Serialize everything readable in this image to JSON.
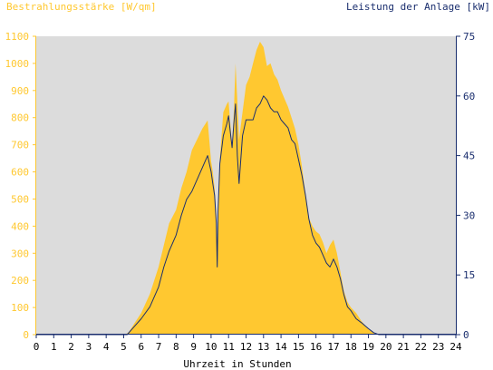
{
  "chart_data": {
    "type": "area",
    "left_axis_label": "Bestrahlungsstärke [W/qm]",
    "right_axis_label": "Leistung der Anlage [kW]",
    "xlabel": "Uhrzeit in Stunden",
    "xlim": [
      0,
      24
    ],
    "ylim_left": [
      0,
      1100
    ],
    "ylim_right": [
      0,
      75
    ],
    "x_ticks": [
      "0",
      "1",
      "2",
      "3",
      "4",
      "5",
      "6",
      "7",
      "8",
      "9",
      "10",
      "11",
      "12",
      "13",
      "14",
      "15",
      "16",
      "17",
      "18",
      "19",
      "20",
      "21",
      "22",
      "23",
      "24"
    ],
    "y_ticks_left": [
      "0",
      "100",
      "200",
      "300",
      "400",
      "500",
      "600",
      "700",
      "800",
      "900",
      "1000",
      "1100"
    ],
    "y_ticks_right": [
      "0",
      "15",
      "30",
      "45",
      "60",
      "75"
    ],
    "grid": false,
    "colors": {
      "plot_background": "#dcdcdc",
      "irradiance_fill": "#ffc830",
      "power_line": "#1a2e6e",
      "axis_left": "#ffc830",
      "axis_right": "#1a2e6e"
    },
    "series": [
      {
        "name": "Bestrahlungsstärke [W/qm]",
        "axis": "left",
        "render": "filled-area",
        "x": [
          0,
          5.1,
          5.3,
          5.6,
          6.0,
          6.5,
          7.0,
          7.3,
          7.6,
          8.0,
          8.3,
          8.6,
          8.9,
          9.2,
          9.5,
          9.8,
          10.0,
          10.1,
          10.2,
          10.3,
          10.35,
          10.4,
          10.5,
          10.7,
          10.9,
          11.0,
          11.1,
          11.2,
          11.3,
          11.4,
          11.5,
          11.6,
          11.8,
          12.0,
          12.2,
          12.4,
          12.6,
          12.8,
          13.0,
          13.2,
          13.4,
          13.6,
          13.8,
          14.0,
          14.2,
          14.4,
          14.6,
          14.8,
          15.0,
          15.2,
          15.4,
          15.6,
          15.8,
          16.0,
          16.2,
          16.4,
          16.6,
          16.8,
          17.0,
          17.2,
          17.4,
          17.6,
          17.8,
          18.0,
          18.3,
          18.6,
          19.0,
          19.2,
          19.4,
          19.6,
          24
        ],
        "values": [
          0,
          0,
          10,
          40,
          80,
          150,
          250,
          330,
          410,
          460,
          540,
          600,
          680,
          720,
          760,
          790,
          640,
          600,
          540,
          440,
          320,
          470,
          650,
          820,
          850,
          860,
          780,
          700,
          820,
          1000,
          860,
          720,
          820,
          920,
          950,
          1000,
          1050,
          1080,
          1060,
          990,
          1000,
          960,
          940,
          900,
          870,
          840,
          800,
          760,
          700,
          620,
          520,
          430,
          400,
          380,
          370,
          340,
          300,
          330,
          350,
          300,
          230,
          160,
          120,
          100,
          80,
          50,
          20,
          10,
          2,
          0,
          0
        ]
      },
      {
        "name": "Leistung der Anlage [kW]",
        "axis": "right",
        "render": "line",
        "x": [
          0,
          5.2,
          5.5,
          6.0,
          6.5,
          7.0,
          7.3,
          7.6,
          8.0,
          8.3,
          8.6,
          8.9,
          9.2,
          9.5,
          9.8,
          10.0,
          10.1,
          10.2,
          10.3,
          10.35,
          10.4,
          10.5,
          10.7,
          10.9,
          11.0,
          11.1,
          11.2,
          11.3,
          11.4,
          11.5,
          11.6,
          11.8,
          12.0,
          12.2,
          12.4,
          12.6,
          12.8,
          13.0,
          13.2,
          13.4,
          13.6,
          13.8,
          14.0,
          14.2,
          14.4,
          14.6,
          14.8,
          15.0,
          15.2,
          15.4,
          15.6,
          15.8,
          16.0,
          16.2,
          16.4,
          16.6,
          16.8,
          17.0,
          17.2,
          17.4,
          17.6,
          17.8,
          18.0,
          18.3,
          18.6,
          19.0,
          19.3,
          19.6,
          24
        ],
        "values": [
          0,
          0,
          1.5,
          4,
          7,
          12,
          17,
          21,
          25,
          30,
          34,
          36,
          39,
          42,
          45,
          41,
          38,
          35,
          28,
          17,
          31,
          43,
          50,
          53,
          55,
          51,
          47,
          53,
          58,
          45,
          38,
          50,
          54,
          54,
          54,
          57,
          58,
          60,
          59,
          57,
          56,
          56,
          54,
          53,
          52,
          49,
          48,
          44,
          40,
          35,
          29,
          25,
          23,
          22,
          20,
          18,
          17,
          19,
          17,
          14,
          10,
          7,
          6,
          4,
          3,
          1.5,
          0.5,
          0,
          0
        ]
      }
    ]
  }
}
